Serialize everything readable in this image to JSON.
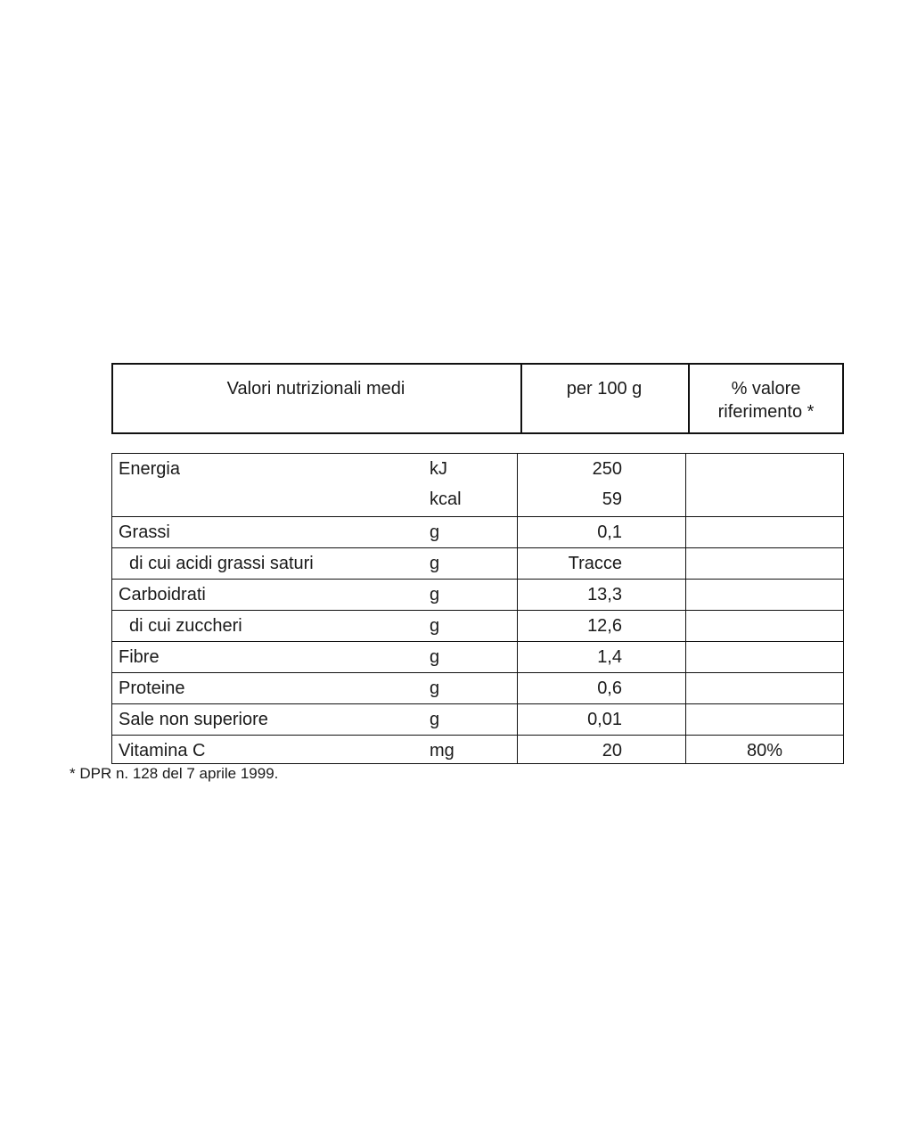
{
  "header": {
    "col1": "Valori nutrizionali medi",
    "col2": "per 100 g",
    "col3_line1": "% valore",
    "col3_line2": "riferimento *"
  },
  "rows": [
    {
      "label": "Energia",
      "sub": false,
      "lines": [
        {
          "unit": "kJ",
          "value": "250"
        },
        {
          "unit": "kcal",
          "value": "59"
        }
      ],
      "pct": ""
    },
    {
      "label": "Grassi",
      "sub": false,
      "lines": [
        {
          "unit": "g",
          "value": "0,1"
        }
      ],
      "pct": ""
    },
    {
      "label": "di cui acidi grassi saturi",
      "sub": true,
      "lines": [
        {
          "unit": "g",
          "value": "Tracce"
        }
      ],
      "pct": ""
    },
    {
      "label": "Carboidrati",
      "sub": false,
      "lines": [
        {
          "unit": "g",
          "value": "13,3"
        }
      ],
      "pct": ""
    },
    {
      "label": "di cui zuccheri",
      "sub": true,
      "lines": [
        {
          "unit": "g",
          "value": "12,6"
        }
      ],
      "pct": ""
    },
    {
      "label": "Fibre",
      "sub": false,
      "lines": [
        {
          "unit": "g",
          "value": "1,4"
        }
      ],
      "pct": ""
    },
    {
      "label": "Proteine",
      "sub": false,
      "lines": [
        {
          "unit": "g",
          "value": "0,6"
        }
      ],
      "pct": ""
    },
    {
      "label": "Sale non superiore",
      "sub": false,
      "lines": [
        {
          "unit": "g",
          "value": "0,01"
        }
      ],
      "pct": ""
    },
    {
      "label": "Vitamina C",
      "sub": false,
      "lines": [
        {
          "unit": "mg",
          "value": "20"
        }
      ],
      "pct": "80%"
    }
  ],
  "footnote": "* DPR n. 128 del 7 aprile 1999."
}
